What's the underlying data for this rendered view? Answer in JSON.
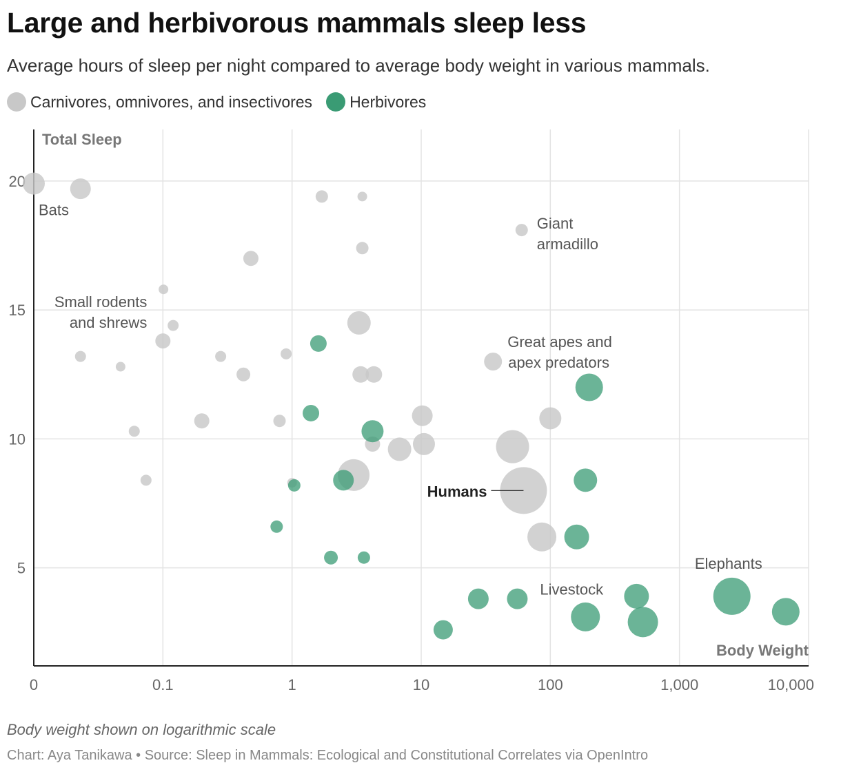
{
  "title": "Large and herbivorous mammals sleep less",
  "subtitle": "Average hours of sleep per night compared to average body weight in various mammals.",
  "legend": [
    {
      "label": "Carnivores, omnivores, and insectivores",
      "color": "#c8c8c8"
    },
    {
      "label": "Herbivores",
      "color": "#3a9b74"
    }
  ],
  "footer": {
    "note": "Body weight shown on logarithmic scale",
    "credit": "Chart: Aya Tanikawa • Source: Sleep in Mammals: Ecological and Constitutional Correlates via OpenIntro"
  },
  "chart_data": {
    "type": "scatter",
    "xlabel": "Body Weight",
    "ylabel": "Total Sleep",
    "xscale": "log",
    "xlim": [
      0.01,
      10000
    ],
    "ylim": [
      1.2,
      22
    ],
    "x_ticks": [
      0.01,
      0.1,
      1,
      10,
      100,
      1000,
      10000
    ],
    "x_tick_labels": [
      "0",
      "0.1",
      "1",
      "10",
      "100",
      "1,000",
      "10,000"
    ],
    "y_ticks": [
      5,
      10,
      15,
      20
    ],
    "y_tick_labels": [
      "5",
      "10",
      "15",
      "20"
    ],
    "series": [
      {
        "name": "Carnivores, omnivores, and insectivores",
        "color": "#c8c8c8",
        "points": [
          {
            "x": 0.01,
            "y": 19.9,
            "r": 16
          },
          {
            "x": 0.023,
            "y": 19.7,
            "r": 15
          },
          {
            "x": 1.7,
            "y": 19.4,
            "r": 9
          },
          {
            "x": 3.5,
            "y": 19.4,
            "r": 7
          },
          {
            "x": 60,
            "y": 18.1,
            "r": 9
          },
          {
            "x": 3.5,
            "y": 17.4,
            "r": 9
          },
          {
            "x": 0.48,
            "y": 17.0,
            "r": 11
          },
          {
            "x": 0.101,
            "y": 15.8,
            "r": 7
          },
          {
            "x": 3.3,
            "y": 14.5,
            "r": 17
          },
          {
            "x": 0.12,
            "y": 14.4,
            "r": 8
          },
          {
            "x": 0.1,
            "y": 13.8,
            "r": 11
          },
          {
            "x": 0.9,
            "y": 13.3,
            "r": 8
          },
          {
            "x": 0.023,
            "y": 13.2,
            "r": 8
          },
          {
            "x": 0.28,
            "y": 13.2,
            "r": 8
          },
          {
            "x": 36,
            "y": 13.0,
            "r": 13
          },
          {
            "x": 0.047,
            "y": 12.8,
            "r": 7
          },
          {
            "x": 0.42,
            "y": 12.5,
            "r": 10
          },
          {
            "x": 3.4,
            "y": 12.5,
            "r": 12
          },
          {
            "x": 4.3,
            "y": 12.5,
            "r": 12
          },
          {
            "x": 10.2,
            "y": 10.9,
            "r": 15
          },
          {
            "x": 100,
            "y": 10.8,
            "r": 16
          },
          {
            "x": 0.2,
            "y": 10.7,
            "r": 11
          },
          {
            "x": 0.8,
            "y": 10.7,
            "r": 9
          },
          {
            "x": 0.06,
            "y": 10.3,
            "r": 8
          },
          {
            "x": 4.2,
            "y": 9.8,
            "r": 11
          },
          {
            "x": 10.5,
            "y": 9.8,
            "r": 16
          },
          {
            "x": 51,
            "y": 9.7,
            "r": 24
          },
          {
            "x": 6.8,
            "y": 9.6,
            "r": 17
          },
          {
            "x": 3.0,
            "y": 8.6,
            "r": 23
          },
          {
            "x": 0.074,
            "y": 8.4,
            "r": 8
          },
          {
            "x": 1.0,
            "y": 8.3,
            "r": 7
          },
          {
            "x": 62,
            "y": 8.0,
            "r": 34
          },
          {
            "x": 86,
            "y": 6.2,
            "r": 21
          }
        ]
      },
      {
        "name": "Herbivores",
        "color": "#3a9b74",
        "points": [
          {
            "x": 1.6,
            "y": 13.7,
            "r": 12
          },
          {
            "x": 200,
            "y": 12.0,
            "r": 20
          },
          {
            "x": 1.4,
            "y": 11.0,
            "r": 12
          },
          {
            "x": 4.2,
            "y": 10.3,
            "r": 16
          },
          {
            "x": 187,
            "y": 8.4,
            "r": 17
          },
          {
            "x": 2.5,
            "y": 8.4,
            "r": 15
          },
          {
            "x": 1.04,
            "y": 8.2,
            "r": 9
          },
          {
            "x": 0.76,
            "y": 6.6,
            "r": 9
          },
          {
            "x": 160,
            "y": 6.2,
            "r": 18
          },
          {
            "x": 2.0,
            "y": 5.4,
            "r": 10
          },
          {
            "x": 3.6,
            "y": 5.4,
            "r": 9
          },
          {
            "x": 2547,
            "y": 3.9,
            "r": 27
          },
          {
            "x": 465,
            "y": 3.9,
            "r": 18
          },
          {
            "x": 27.7,
            "y": 3.8,
            "r": 15
          },
          {
            "x": 55.5,
            "y": 3.8,
            "r": 15
          },
          {
            "x": 6654,
            "y": 3.3,
            "r": 20
          },
          {
            "x": 187,
            "y": 3.1,
            "r": 21
          },
          {
            "x": 521,
            "y": 2.9,
            "r": 22
          },
          {
            "x": 14.8,
            "y": 2.6,
            "r": 14
          }
        ]
      }
    ],
    "annotations": [
      {
        "text": "Bats",
        "x": 0.01,
        "y": 19.9
      },
      {
        "text": "Giant",
        "x": 60,
        "y": 18.1
      },
      {
        "text": "armadillo",
        "x": 60,
        "y": 18.1
      },
      {
        "text": "Small rodents",
        "x": 0.1,
        "y": 15.8
      },
      {
        "text": "and shrews",
        "x": 0.1,
        "y": 15.8
      },
      {
        "text": "Great apes and",
        "x": 36,
        "y": 13.0
      },
      {
        "text": "apex predators",
        "x": 36,
        "y": 13.0
      },
      {
        "text": "Humans",
        "x": 62,
        "y": 8.0
      },
      {
        "text": "Livestock",
        "x": 55.5,
        "y": 3.8
      },
      {
        "text": "Elephants",
        "x": 2547,
        "y": 3.9
      }
    ]
  }
}
